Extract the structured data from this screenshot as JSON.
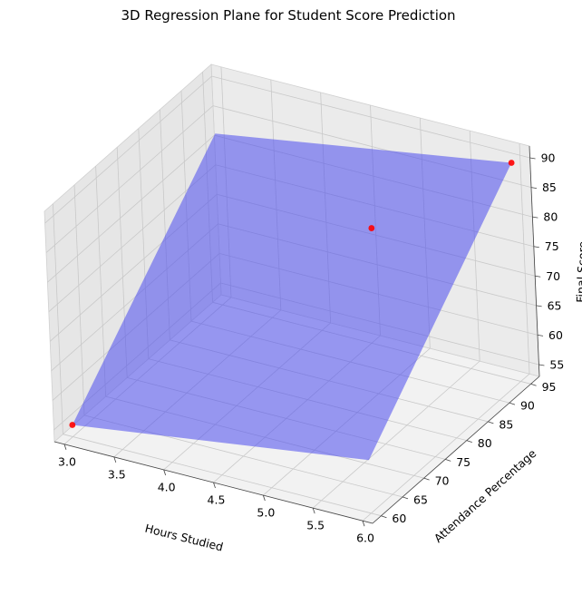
{
  "chart_data": {
    "type": "surface3d",
    "title": "3D Regression Plane for Student Score Prediction",
    "xlabel": "Hours Studied",
    "ylabel": "Attendance Percentage",
    "zlabel": "Final Score",
    "xlim": [
      2.9,
      6.1
    ],
    "ylim": [
      58,
      97
    ],
    "zlim": [
      53,
      92
    ],
    "x_ticks": [
      "3.0",
      "3.5",
      "4.0",
      "4.5",
      "5.0",
      "5.5",
      "6.0"
    ],
    "y_ticks": [
      "60",
      "65",
      "70",
      "75",
      "80",
      "85",
      "90",
      "95"
    ],
    "z_ticks": [
      "55",
      "60",
      "65",
      "70",
      "75",
      "80",
      "85",
      "90"
    ],
    "plane": {
      "color": "#4a4aef",
      "opacity": 0.55,
      "corners": [
        {
          "x": 3.0,
          "y": 60,
          "z": 55
        },
        {
          "x": 6.0,
          "y": 60,
          "z": 62
        },
        {
          "x": 6.0,
          "y": 95,
          "z": 90
        },
        {
          "x": 3.0,
          "y": 95,
          "z": 82
        }
      ]
    },
    "points": {
      "color": "#ff0000",
      "values": [
        {
          "x": 3.0,
          "y": 60,
          "z": 55
        },
        {
          "x": 5.0,
          "y": 85,
          "z": 81
        },
        {
          "x": 6.0,
          "y": 95,
          "z": 90
        }
      ]
    }
  }
}
